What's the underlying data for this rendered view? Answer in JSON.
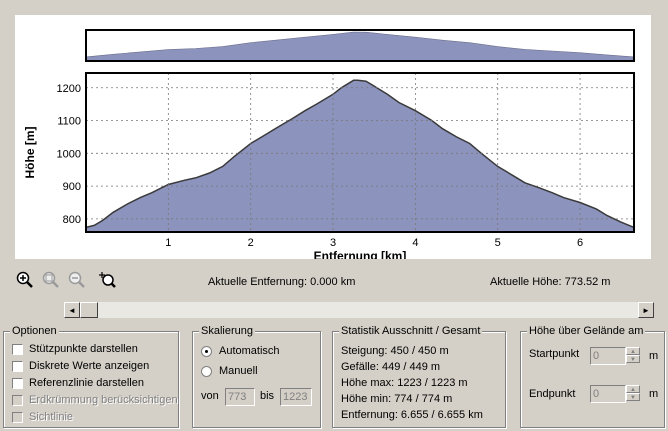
{
  "chart_data": [
    {
      "type": "area",
      "title": "",
      "xlabel": "",
      "ylabel": "",
      "x": [
        0,
        0.33,
        0.66,
        1.0,
        1.33,
        1.66,
        2.0,
        2.33,
        2.66,
        3.0,
        3.25,
        3.4,
        3.66,
        4.0,
        4.33,
        4.66,
        5.0,
        5.33,
        5.66,
        6.0,
        6.33,
        6.655
      ],
      "y": [
        774,
        820,
        865,
        905,
        925,
        960,
        1030,
        1080,
        1130,
        1180,
        1223,
        1220,
        1180,
        1130,
        1075,
        1030,
        960,
        910,
        880,
        850,
        810,
        774
      ],
      "xlim": [
        0,
        6.655
      ],
      "ylim": [
        700,
        1223
      ],
      "grid": false,
      "color": "#8c93bd"
    },
    {
      "type": "area",
      "title": "",
      "xlabel": "Entfernung [km]",
      "ylabel": "Höhe [m]",
      "x": [
        0,
        0.1,
        0.2,
        0.33,
        0.5,
        0.66,
        0.8,
        1.0,
        1.2,
        1.33,
        1.5,
        1.66,
        1.8,
        2.0,
        2.1,
        2.2,
        2.33,
        2.5,
        2.66,
        2.8,
        3.0,
        3.1,
        3.2,
        3.25,
        3.3,
        3.4,
        3.5,
        3.66,
        3.8,
        4.0,
        4.2,
        4.33,
        4.5,
        4.66,
        4.8,
        5.0,
        5.2,
        5.33,
        5.5,
        5.66,
        5.8,
        6.0,
        6.2,
        6.33,
        6.5,
        6.655
      ],
      "y": [
        774,
        780,
        795,
        820,
        845,
        865,
        880,
        905,
        918,
        925,
        940,
        960,
        990,
        1030,
        1045,
        1060,
        1080,
        1105,
        1130,
        1150,
        1180,
        1200,
        1215,
        1223,
        1223,
        1220,
        1205,
        1180,
        1155,
        1130,
        1100,
        1075,
        1050,
        1030,
        1000,
        960,
        930,
        910,
        895,
        880,
        865,
        850,
        830,
        810,
        790,
        774
      ],
      "xlim": [
        0,
        6.655
      ],
      "ylim": [
        760,
        1245
      ],
      "xticks": [
        1,
        2,
        3,
        4,
        5,
        6
      ],
      "yticks": [
        800,
        900,
        1000,
        1100,
        1200
      ],
      "grid": true,
      "color": "#8c93bd"
    }
  ],
  "readouts": {
    "distance": "Aktuelle Entfernung: 0.000 km",
    "height": "Aktuelle Höhe: 773.52 m"
  },
  "scroll": {
    "left_arrow": "◄",
    "right_arrow": "►"
  },
  "options": {
    "title": "Optionen",
    "items": [
      {
        "label": "Stützpunkte darstellen",
        "checked": false,
        "enabled": true
      },
      {
        "label": "Diskrete Werte anzeigen",
        "checked": false,
        "enabled": true
      },
      {
        "label": "Referenzlinie darstellen",
        "checked": false,
        "enabled": true
      },
      {
        "label": "Erdkrümmung berücksichtigen",
        "checked": false,
        "enabled": false
      },
      {
        "label": "Sichtlinie",
        "checked": false,
        "enabled": false
      }
    ]
  },
  "scaling": {
    "title": "Skalierung",
    "auto_label": "Automatisch",
    "manual_label": "Manuell",
    "selected": "auto",
    "from_label": "von",
    "from_value": "773",
    "to_label": "bis",
    "to_value": "1223"
  },
  "stats": {
    "title": "Statistik  Ausschnitt / Gesamt",
    "lines": [
      "Steigung: 450 / 450 m",
      "Gefälle: 449 / 449 m",
      "Höhe max: 1223 / 1223 m",
      "Höhe min: 774 / 774 m",
      "Entfernung: 6.655 / 6.655 km"
    ]
  },
  "terrain": {
    "title": "Höhe über Gelände am",
    "start_label": "Startpunkt",
    "start_value": "0",
    "start_unit": "m",
    "end_label": "Endpunkt",
    "end_value": "0",
    "end_unit": "m"
  }
}
